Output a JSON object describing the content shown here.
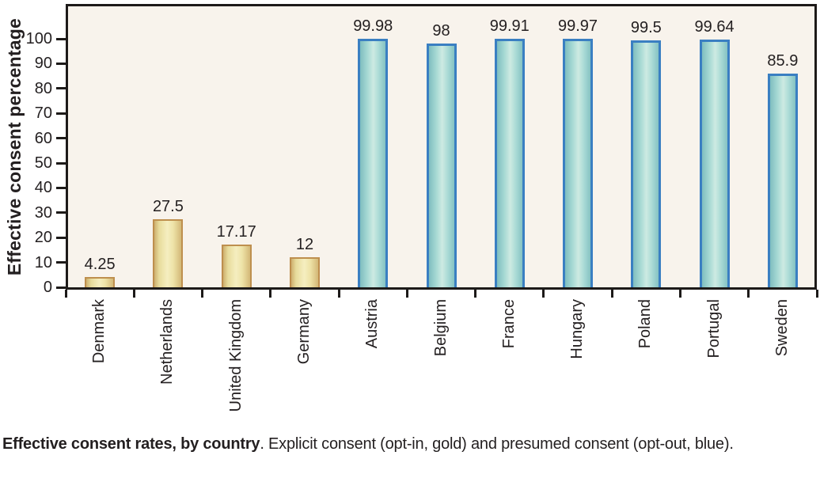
{
  "caption": {
    "bold": "Effective consent rates, by country",
    "rest": ". Explicit consent (opt-in, gold) and presumed consent (opt-out, blue)."
  },
  "chart_data": {
    "type": "bar",
    "title": "Effective consent rates, by country",
    "xlabel": "",
    "ylabel": "Effective consent percentage",
    "ylim": [
      0,
      100
    ],
    "yticks": [
      0,
      10,
      20,
      30,
      40,
      50,
      60,
      70,
      80,
      90,
      100
    ],
    "grid": false,
    "legend_note": "Explicit consent (opt-in, gold) and presumed consent (opt-out, blue)",
    "categories": [
      "Denmark",
      "Netherlands",
      "United Kingdom",
      "Germany",
      "Austria",
      "Belgium",
      "France",
      "Hungary",
      "Poland",
      "Portugal",
      "Sweden"
    ],
    "values": [
      4.25,
      27.5,
      17.17,
      12,
      99.98,
      98,
      99.91,
      99.97,
      99.5,
      99.64,
      85.9
    ],
    "value_labels": [
      "4.25",
      "27.5",
      "17.17",
      "12",
      "99.98",
      "98",
      "99.91",
      "99.97",
      "99.5",
      "99.64",
      "85.9"
    ],
    "bar_groups": [
      "explicit",
      "explicit",
      "explicit",
      "explicit",
      "presumed",
      "presumed",
      "presumed",
      "presumed",
      "presumed",
      "presumed",
      "presumed"
    ],
    "series": [
      {
        "name": "Explicit consent (opt-in, gold)",
        "categories": [
          "Denmark",
          "Netherlands",
          "United Kingdom",
          "Germany"
        ],
        "values": [
          4.25,
          27.5,
          17.17,
          12
        ]
      },
      {
        "name": "Presumed consent (opt-out, blue)",
        "categories": [
          "Austria",
          "Belgium",
          "France",
          "Hungary",
          "Poland",
          "Portugal",
          "Sweden"
        ],
        "values": [
          99.98,
          98,
          99.91,
          99.97,
          99.5,
          99.64,
          85.9
        ]
      }
    ],
    "colors": {
      "gold_border": "#be8f4e",
      "gold_fill_center": "#f5eec0",
      "gold_fill_edge": "#cdaf6e",
      "blue_border": "#3a7fc2",
      "blue_fill_center": "#cdeae2",
      "blue_fill_edge": "#7fbec0",
      "plot_background": "#f8f3ec",
      "axis": "#1d1a19",
      "text": "#231f20"
    }
  }
}
